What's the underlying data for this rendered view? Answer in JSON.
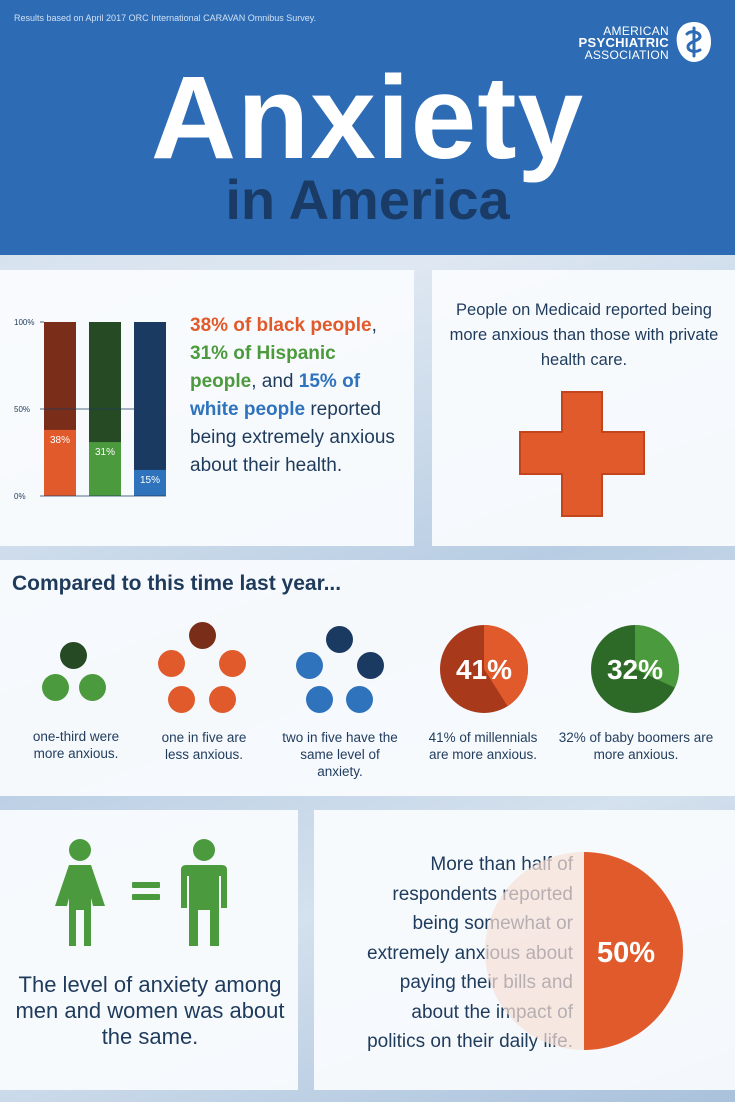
{
  "header": {
    "survey_note": "Results based on April 2017 ORC International CARAVAN Omnibus Survey.",
    "logo_line1": "AMERICAN",
    "logo_line2": "PSYCHIATRIC",
    "logo_line3": "ASSOCIATION",
    "title": "Anxiety",
    "subtitle": "in America"
  },
  "colors": {
    "header_blue": "#2d6cb5",
    "orange": "#e05a2b",
    "green": "#4c9a3e",
    "blue": "#2f73bd",
    "dark_text": "#1f3b5c"
  },
  "chart_data": {
    "type": "bar",
    "categories": [
      "black people",
      "Hispanic people",
      "white people"
    ],
    "values": [
      38,
      31,
      15
    ],
    "value_labels": [
      "38%",
      "31%",
      "15%"
    ],
    "ylim": [
      0,
      100
    ],
    "yticks": [
      "0%",
      "50%",
      "100%"
    ],
    "colors": [
      "#e05a2b",
      "#4c9a3e",
      "#2f73bd"
    ],
    "remainder_colors": [
      "#7a2d18",
      "#264a24",
      "#1a3a62"
    ]
  },
  "race_stat": {
    "black": "38% of black people",
    "sep1": ",",
    "hispanic": "31% of Hispanic people",
    "sep2": ", and",
    "white": "15% of white people",
    "rest": "reported being extremely anxious about their health."
  },
  "medicaid": {
    "text": "People on Medicaid reported being more anxious than those with private health care.",
    "icon": "medical-cross-icon"
  },
  "compare": {
    "heading": "Compared to this time last year...",
    "items": [
      {
        "caption": "one-third were more anxious.",
        "icon": "three-dots-icon"
      },
      {
        "caption": "one in five are less anxious.",
        "icon": "five-dots-icon"
      },
      {
        "caption": "two in five have the same level of anxiety.",
        "icon": "five-dots-icon"
      },
      {
        "caption": "41% of millennials are more anxious.",
        "pie_label": "41%",
        "value": 41
      },
      {
        "caption": "32% of baby boomers are more anxious.",
        "pie_label": "32%",
        "value": 32
      }
    ]
  },
  "gender": {
    "text": "The level of anxiety among men and women was about the same.",
    "icons": [
      "woman-icon",
      "equals-icon",
      "man-icon"
    ]
  },
  "bills": {
    "text_lines": [
      "More than half of",
      "respondents reported",
      "being somewhat or",
      "extremely anxious about",
      "paying their bills and",
      "about the impact of",
      "politics on their daily life."
    ],
    "pie_label": "50%",
    "value": 50
  }
}
